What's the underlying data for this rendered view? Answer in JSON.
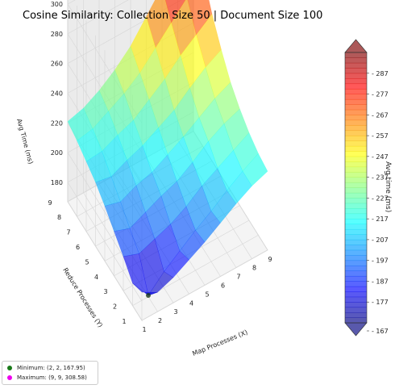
{
  "chart_data": {
    "type": "surface3d",
    "title": "Cosine Similarity: Collection Size 50 | Document Size 100",
    "xlabel": "Map Processes (X)",
    "ylabel": "Reduce Processes (Y)",
    "zlabel": "Avg Time (ms)",
    "x": [
      1,
      2,
      3,
      4,
      5,
      6,
      7,
      8,
      9
    ],
    "y": [
      1,
      2,
      3,
      4,
      5,
      6,
      7,
      8,
      9
    ],
    "x_ticks": [
      "1",
      "2",
      "3",
      "4",
      "5",
      "6",
      "7",
      "8",
      "9"
    ],
    "y_ticks": [
      "1",
      "2",
      "3",
      "4",
      "5",
      "6",
      "7",
      "8",
      "9"
    ],
    "z_ticks": [
      "180",
      "200",
      "220",
      "240",
      "260",
      "280",
      "300"
    ],
    "zlim": [
      167,
      309
    ],
    "z": [
      [
        186,
        180,
        184,
        190,
        196,
        203,
        210,
        216,
        220
      ],
      [
        182,
        167.95,
        178,
        186,
        194,
        201,
        209,
        216,
        222
      ],
      [
        190,
        186,
        190,
        194,
        200,
        208,
        214,
        220,
        226
      ],
      [
        197,
        193,
        198,
        203,
        207,
        214,
        222,
        228,
        232
      ],
      [
        204,
        201,
        206,
        209,
        215,
        221,
        228,
        235,
        240
      ],
      [
        210,
        208,
        213,
        217,
        223,
        229,
        238,
        246,
        252
      ],
      [
        214,
        215,
        220,
        224,
        232,
        240,
        250,
        258,
        266
      ],
      [
        218,
        220,
        226,
        232,
        240,
        251,
        262,
        273,
        284
      ],
      [
        221,
        224,
        230,
        238,
        248,
        262,
        276,
        292,
        308.58
      ]
    ],
    "colorbar": {
      "label": "Avg time (ms)",
      "ticks": [
        "167",
        "177",
        "187",
        "197",
        "207",
        "217",
        "227",
        "237",
        "247",
        "257",
        "267",
        "277",
        "287"
      ],
      "range": [
        167,
        297
      ],
      "colormap": "jet"
    },
    "legend": {
      "position": "bottom-left",
      "entries": [
        {
          "label": "Minimum: (2, 2, 167.95)",
          "color": "#1a7a1a"
        },
        {
          "label": "Maximum: (9, 9, 308.58)",
          "color": "#ee00ee"
        }
      ]
    },
    "minimum": {
      "x": 2,
      "y": 2,
      "z": 167.95
    },
    "maximum": {
      "x": 9,
      "y": 9,
      "z": 308.58
    }
  }
}
